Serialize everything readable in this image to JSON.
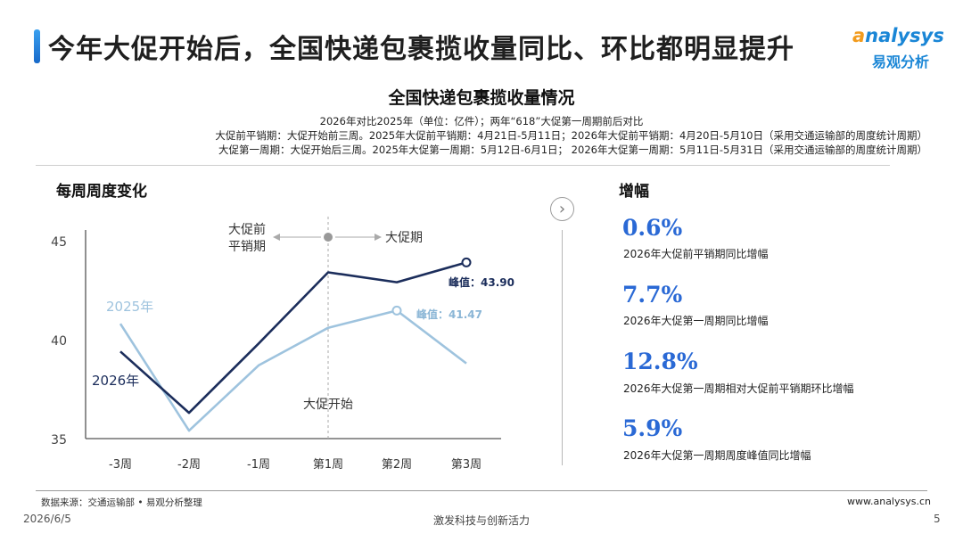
{
  "header": {
    "title": "今年大促开始后，全国快递包裹揽收量同比、环比都明显提升",
    "logo_text_accent": "a",
    "logo_text_main": "nalysys",
    "logo_sub": "易观分析"
  },
  "chart_header": {
    "title": "全国快递包裹揽收量情况",
    "subtitle_1": "2026年对比2025年（单位：亿件）；两年“618”大促第一周期前后对比",
    "subtitle_2": "大促前平销期：大促开始前三周。2025年大促前平销期：4月21日-5月11日；2026年大促前平销期：4月20日-5月10日（采用交通运输部的周度统计周期）",
    "subtitle_3": "大促第一周期：大促开始后三周。2025年大促第一周期：5月12日-6月1日； 2026年大促第一周期：5月11日-5月31日（采用交通运输部的周度统计周期）"
  },
  "left_panel": {
    "heading": "每周周度变化"
  },
  "right_panel": {
    "heading": "增幅",
    "stats": [
      {
        "value": "0.6%",
        "label": "2026年大促前平销期同比增幅"
      },
      {
        "value": "7.7%",
        "label": "2026年大促第一周期同比增幅"
      },
      {
        "value": "12.8%",
        "label": "2026年大促第一周期相对大促前平销期环比增幅"
      },
      {
        "value": "5.9%",
        "label": "2026年大促第一周期周度峰值同比增幅"
      }
    ]
  },
  "chart_data": {
    "type": "line",
    "categories": [
      "-3周",
      "-2周",
      "-1周",
      "第1周",
      "第2周",
      "第3周"
    ],
    "ylim": [
      35,
      45
    ],
    "yticks": [
      35,
      40,
      45
    ],
    "xlabel": "",
    "ylabel": "",
    "grid": false,
    "series": [
      {
        "name": "2026年",
        "color": "#1b2d5b",
        "values": [
          39.4,
          36.3,
          39.8,
          43.4,
          42.9,
          43.9
        ],
        "peak_label": "峰值：43.90",
        "peak_index": 5
      },
      {
        "name": "2025年",
        "color": "#9ec3de",
        "values": [
          40.8,
          35.4,
          38.7,
          40.6,
          41.47,
          38.8
        ],
        "peak_label": "峰值：41.47",
        "peak_index": 4
      }
    ],
    "annotations": {
      "pre_label_line1": "大促前",
      "pre_label_line2": "平销期",
      "post_label": "大促期",
      "start_label": "大促开始"
    }
  },
  "footer": {
    "source": "数据来源：交通运输部 • 易观分析整理",
    "date": "2026/6/5",
    "slogan": "激发科技与创新活力",
    "url": "www.analysys.cn",
    "page": "5"
  }
}
